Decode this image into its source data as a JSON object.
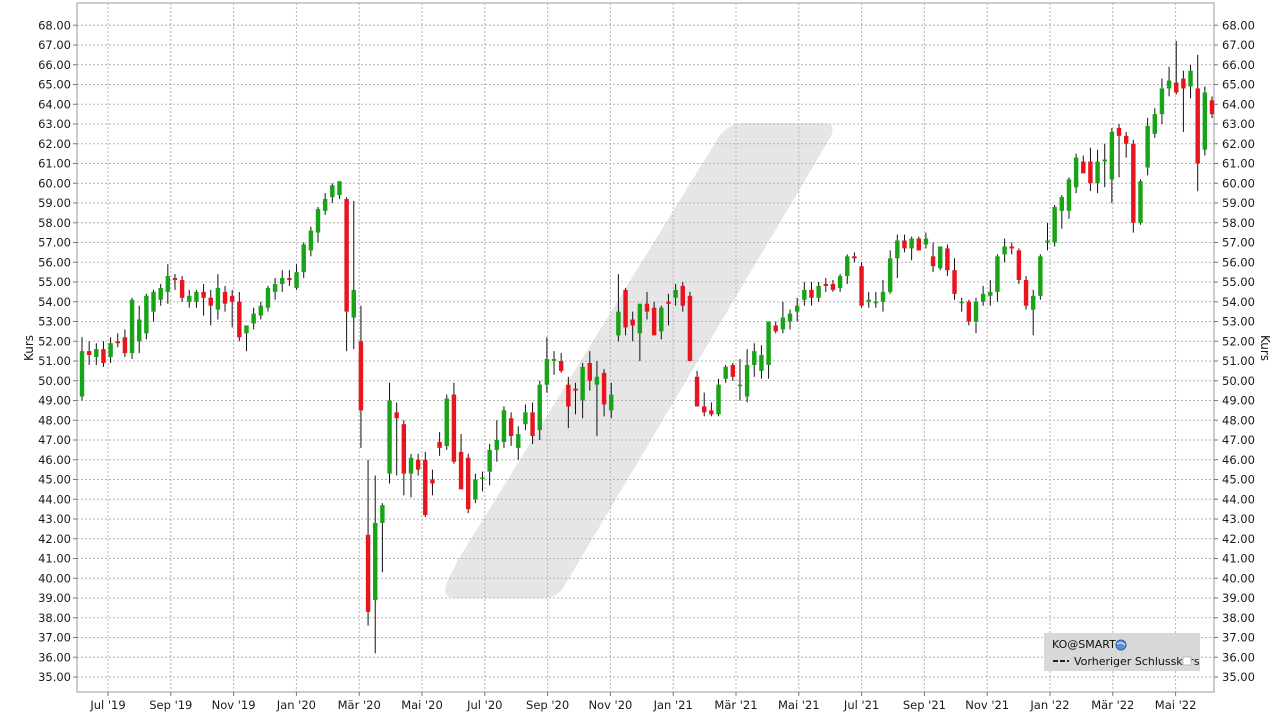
{
  "chart_data": {
    "type": "candlestick",
    "ylabel": "Kurs",
    "ylim": [
      34.4,
      68.6
    ],
    "y_ticks": [
      "35.00",
      "36.00",
      "37.00",
      "38.00",
      "39.00",
      "40.00",
      "41.00",
      "42.00",
      "43.00",
      "44.00",
      "45.00",
      "46.00",
      "47.00",
      "48.00",
      "49.00",
      "50.00",
      "51.00",
      "52.00",
      "53.00",
      "54.00",
      "55.00",
      "56.00",
      "57.00",
      "58.00",
      "59.00",
      "60.00",
      "61.00",
      "62.00",
      "63.00",
      "64.00",
      "65.00",
      "66.00",
      "67.00",
      "68.00"
    ],
    "x_ticks": [
      "Jul '19",
      "Sep '19",
      "Nov '19",
      "Jan '20",
      "Mär '20",
      "Mai '20",
      "Jul '20",
      "Sep '20",
      "Nov '20",
      "Jan '21",
      "Mär '21",
      "Mai '21",
      "Jul '21",
      "Sep '21",
      "Nov '21",
      "Jan '22",
      "Mär '22",
      "Mai '22"
    ],
    "grid": true,
    "legend": {
      "placement": "bottom-right",
      "title": "KO@SMART",
      "entries": [
        "Vorheriger Schlusskurs"
      ]
    },
    "up_color": "#19a319",
    "down_color": "#e8141e",
    "watermark_color": "#e6e6e6",
    "candles": [
      {
        "o": 49.2,
        "h": 52.2,
        "l": 49.0,
        "c": 51.5
      },
      {
        "o": 51.5,
        "h": 52.0,
        "l": 50.8,
        "c": 51.3
      },
      {
        "o": 51.2,
        "h": 51.9,
        "l": 50.8,
        "c": 51.6
      },
      {
        "o": 51.6,
        "h": 52.0,
        "l": 50.7,
        "c": 50.9
      },
      {
        "o": 51.2,
        "h": 52.2,
        "l": 50.9,
        "c": 51.9
      },
      {
        "o": 52.0,
        "h": 52.4,
        "l": 51.7,
        "c": 51.9
      },
      {
        "o": 52.2,
        "h": 52.6,
        "l": 51.2,
        "c": 51.4
      },
      {
        "o": 51.4,
        "h": 54.2,
        "l": 51.1,
        "c": 54.1
      },
      {
        "o": 52.0,
        "h": 53.8,
        "l": 51.4,
        "c": 53.1
      },
      {
        "o": 52.4,
        "h": 54.4,
        "l": 52.1,
        "c": 54.3
      },
      {
        "o": 53.5,
        "h": 54.6,
        "l": 53.0,
        "c": 54.5
      },
      {
        "o": 54.1,
        "h": 54.9,
        "l": 53.8,
        "c": 54.7
      },
      {
        "o": 54.5,
        "h": 55.9,
        "l": 53.9,
        "c": 55.3
      },
      {
        "o": 55.2,
        "h": 55.4,
        "l": 54.6,
        "c": 55.1
      },
      {
        "o": 55.1,
        "h": 55.3,
        "l": 54.0,
        "c": 54.2
      },
      {
        "o": 54.0,
        "h": 54.6,
        "l": 53.7,
        "c": 54.3
      },
      {
        "o": 54.0,
        "h": 54.6,
        "l": 53.7,
        "c": 54.5
      },
      {
        "o": 54.5,
        "h": 54.9,
        "l": 53.3,
        "c": 54.2
      },
      {
        "o": 54.2,
        "h": 54.6,
        "l": 52.8,
        "c": 53.8
      },
      {
        "o": 53.6,
        "h": 55.4,
        "l": 53.1,
        "c": 54.7
      },
      {
        "o": 54.5,
        "h": 54.8,
        "l": 53.5,
        "c": 53.9
      },
      {
        "o": 54.3,
        "h": 54.6,
        "l": 52.7,
        "c": 54.0
      },
      {
        "o": 54.0,
        "h": 54.5,
        "l": 52.0,
        "c": 52.2
      },
      {
        "o": 52.4,
        "h": 52.8,
        "l": 51.5,
        "c": 52.8
      },
      {
        "o": 52.9,
        "h": 53.7,
        "l": 52.6,
        "c": 53.4
      },
      {
        "o": 53.3,
        "h": 54.0,
        "l": 53.1,
        "c": 53.8
      },
      {
        "o": 53.7,
        "h": 54.8,
        "l": 53.5,
        "c": 54.7
      },
      {
        "o": 54.5,
        "h": 55.2,
        "l": 54.1,
        "c": 54.9
      },
      {
        "o": 54.9,
        "h": 55.6,
        "l": 54.5,
        "c": 55.2
      },
      {
        "o": 55.2,
        "h": 55.6,
        "l": 54.8,
        "c": 55.1
      },
      {
        "o": 54.7,
        "h": 55.9,
        "l": 54.6,
        "c": 55.5
      },
      {
        "o": 55.5,
        "h": 57.0,
        "l": 55.2,
        "c": 56.9
      },
      {
        "o": 56.6,
        "h": 57.8,
        "l": 56.3,
        "c": 57.6
      },
      {
        "o": 57.5,
        "h": 58.8,
        "l": 57.0,
        "c": 58.7
      },
      {
        "o": 58.6,
        "h": 59.5,
        "l": 58.4,
        "c": 59.2
      },
      {
        "o": 59.3,
        "h": 60.0,
        "l": 59.0,
        "c": 59.9
      },
      {
        "o": 59.4,
        "h": 60.1,
        "l": 59.2,
        "c": 60.1
      },
      {
        "o": 59.2,
        "h": 59.3,
        "l": 51.5,
        "c": 53.5
      },
      {
        "o": 53.2,
        "h": 59.1,
        "l": 51.6,
        "c": 54.6
      },
      {
        "o": 52.0,
        "h": 53.8,
        "l": 46.6,
        "c": 48.5
      },
      {
        "o": 42.2,
        "h": 46.0,
        "l": 37.6,
        "c": 38.3
      },
      {
        "o": 38.9,
        "h": 45.2,
        "l": 36.2,
        "c": 42.8
      },
      {
        "o": 42.8,
        "h": 43.8,
        "l": 40.3,
        "c": 43.7
      },
      {
        "o": 45.3,
        "h": 49.9,
        "l": 44.8,
        "c": 49.0
      },
      {
        "o": 48.4,
        "h": 48.9,
        "l": 45.2,
        "c": 48.1
      },
      {
        "o": 47.8,
        "h": 48.0,
        "l": 44.2,
        "c": 45.3
      },
      {
        "o": 45.3,
        "h": 46.3,
        "l": 44.1,
        "c": 46.1
      },
      {
        "o": 46.0,
        "h": 46.3,
        "l": 45.2,
        "c": 45.5
      },
      {
        "o": 46.0,
        "h": 46.4,
        "l": 43.1,
        "c": 43.2
      },
      {
        "o": 45.0,
        "h": 45.5,
        "l": 44.2,
        "c": 44.8
      },
      {
        "o": 46.9,
        "h": 47.4,
        "l": 46.2,
        "c": 46.6
      },
      {
        "o": 46.7,
        "h": 49.3,
        "l": 46.5,
        "c": 49.1
      },
      {
        "o": 49.3,
        "h": 49.9,
        "l": 45.8,
        "c": 45.9
      },
      {
        "o": 46.4,
        "h": 47.3,
        "l": 44.8,
        "c": 44.5
      },
      {
        "o": 46.1,
        "h": 46.3,
        "l": 43.3,
        "c": 43.5
      },
      {
        "o": 44.0,
        "h": 45.3,
        "l": 43.8,
        "c": 45.0
      },
      {
        "o": 45.1,
        "h": 45.4,
        "l": 44.4,
        "c": 45.1
      },
      {
        "o": 45.4,
        "h": 46.8,
        "l": 44.7,
        "c": 46.5
      },
      {
        "o": 46.5,
        "h": 48.0,
        "l": 45.9,
        "c": 47.0
      },
      {
        "o": 46.9,
        "h": 48.7,
        "l": 46.6,
        "c": 48.5
      },
      {
        "o": 48.1,
        "h": 48.4,
        "l": 46.7,
        "c": 47.2
      },
      {
        "o": 46.6,
        "h": 47.7,
        "l": 46.0,
        "c": 47.3
      },
      {
        "o": 47.8,
        "h": 48.8,
        "l": 47.5,
        "c": 48.4
      },
      {
        "o": 48.4,
        "h": 48.9,
        "l": 46.8,
        "c": 47.2
      },
      {
        "o": 47.5,
        "h": 50.0,
        "l": 47.0,
        "c": 49.8
      },
      {
        "o": 49.8,
        "h": 52.2,
        "l": 49.4,
        "c": 51.1
      },
      {
        "o": 51.0,
        "h": 51.5,
        "l": 50.3,
        "c": 51.1
      },
      {
        "o": 51.0,
        "h": 51.4,
        "l": 50.4,
        "c": 50.5
      },
      {
        "o": 49.8,
        "h": 50.2,
        "l": 47.6,
        "c": 48.7
      },
      {
        "o": 49.6,
        "h": 49.9,
        "l": 48.3,
        "c": 49.5
      },
      {
        "o": 49.0,
        "h": 50.9,
        "l": 48.1,
        "c": 50.7
      },
      {
        "o": 50.9,
        "h": 51.5,
        "l": 49.5,
        "c": 50.0
      },
      {
        "o": 49.8,
        "h": 51.0,
        "l": 47.2,
        "c": 50.2
      },
      {
        "o": 50.4,
        "h": 50.6,
        "l": 48.2,
        "c": 48.8
      },
      {
        "o": 48.5,
        "h": 49.9,
        "l": 48.1,
        "c": 49.3
      },
      {
        "o": 52.3,
        "h": 55.4,
        "l": 52.0,
        "c": 53.5
      },
      {
        "o": 54.6,
        "h": 54.7,
        "l": 52.3,
        "c": 52.7
      },
      {
        "o": 53.1,
        "h": 53.5,
        "l": 52.0,
        "c": 52.8
      },
      {
        "o": 52.4,
        "h": 53.9,
        "l": 51.0,
        "c": 53.9
      },
      {
        "o": 53.9,
        "h": 54.5,
        "l": 53.1,
        "c": 53.5
      },
      {
        "o": 53.7,
        "h": 54.0,
        "l": 52.3,
        "c": 52.3
      },
      {
        "o": 52.5,
        "h": 53.8,
        "l": 52.1,
        "c": 53.7
      },
      {
        "o": 54.0,
        "h": 54.4,
        "l": 52.8,
        "c": 53.9
      },
      {
        "o": 54.2,
        "h": 54.9,
        "l": 53.8,
        "c": 54.6
      },
      {
        "o": 54.8,
        "h": 55.0,
        "l": 53.5,
        "c": 53.8
      },
      {
        "o": 54.3,
        "h": 54.5,
        "l": 51.2,
        "c": 51.0
      },
      {
        "o": 50.2,
        "h": 50.5,
        "l": 48.7,
        "c": 48.7
      },
      {
        "o": 48.7,
        "h": 49.4,
        "l": 48.2,
        "c": 48.4
      },
      {
        "o": 48.5,
        "h": 48.9,
        "l": 48.2,
        "c": 48.3
      },
      {
        "o": 48.3,
        "h": 50.1,
        "l": 48.2,
        "c": 49.8
      },
      {
        "o": 50.1,
        "h": 50.8,
        "l": 49.9,
        "c": 50.7
      },
      {
        "o": 50.8,
        "h": 50.9,
        "l": 50.0,
        "c": 50.2
      },
      {
        "o": 49.8,
        "h": 51.1,
        "l": 49.0,
        "c": 49.8
      },
      {
        "o": 49.2,
        "h": 51.6,
        "l": 48.9,
        "c": 50.8
      },
      {
        "o": 50.8,
        "h": 51.9,
        "l": 50.2,
        "c": 51.5
      },
      {
        "o": 50.5,
        "h": 51.8,
        "l": 50.1,
        "c": 51.3
      },
      {
        "o": 50.8,
        "h": 53.0,
        "l": 50.1,
        "c": 53.0
      },
      {
        "o": 52.8,
        "h": 53.0,
        "l": 52.4,
        "c": 52.5
      },
      {
        "o": 52.6,
        "h": 54.0,
        "l": 52.4,
        "c": 53.2
      },
      {
        "o": 53.0,
        "h": 53.6,
        "l": 52.6,
        "c": 53.4
      },
      {
        "o": 53.5,
        "h": 54.2,
        "l": 53.0,
        "c": 53.8
      },
      {
        "o": 54.1,
        "h": 55.0,
        "l": 53.8,
        "c": 54.6
      },
      {
        "o": 54.6,
        "h": 55.0,
        "l": 53.8,
        "c": 54.2
      },
      {
        "o": 54.2,
        "h": 55.0,
        "l": 54.0,
        "c": 54.8
      },
      {
        "o": 54.9,
        "h": 55.2,
        "l": 54.5,
        "c": 54.8
      },
      {
        "o": 54.9,
        "h": 55.1,
        "l": 54.5,
        "c": 54.6
      },
      {
        "o": 54.7,
        "h": 55.4,
        "l": 54.5,
        "c": 55.3
      },
      {
        "o": 55.3,
        "h": 56.4,
        "l": 54.9,
        "c": 56.3
      },
      {
        "o": 56.3,
        "h": 56.5,
        "l": 56.0,
        "c": 56.2
      },
      {
        "o": 55.8,
        "h": 56.0,
        "l": 53.7,
        "c": 53.8
      },
      {
        "o": 54.0,
        "h": 54.5,
        "l": 53.7,
        "c": 54.1
      },
      {
        "o": 54.0,
        "h": 54.5,
        "l": 53.7,
        "c": 54.0
      },
      {
        "o": 54.0,
        "h": 55.1,
        "l": 53.5,
        "c": 54.5
      },
      {
        "o": 54.5,
        "h": 56.6,
        "l": 54.4,
        "c": 56.2
      },
      {
        "o": 56.2,
        "h": 57.4,
        "l": 55.2,
        "c": 57.1
      },
      {
        "o": 57.1,
        "h": 57.4,
        "l": 56.5,
        "c": 56.7
      },
      {
        "o": 56.7,
        "h": 57.3,
        "l": 56.1,
        "c": 57.2
      },
      {
        "o": 57.2,
        "h": 57.3,
        "l": 56.6,
        "c": 56.6
      },
      {
        "o": 56.9,
        "h": 57.5,
        "l": 56.7,
        "c": 57.2
      },
      {
        "o": 56.3,
        "h": 57.0,
        "l": 55.5,
        "c": 55.8
      },
      {
        "o": 55.7,
        "h": 56.8,
        "l": 55.6,
        "c": 56.8
      },
      {
        "o": 56.7,
        "h": 56.9,
        "l": 55.3,
        "c": 55.6
      },
      {
        "o": 55.6,
        "h": 56.2,
        "l": 54.1,
        "c": 54.4
      },
      {
        "o": 54.0,
        "h": 54.2,
        "l": 53.5,
        "c": 54.0
      },
      {
        "o": 54.0,
        "h": 54.1,
        "l": 52.8,
        "c": 53.0
      },
      {
        "o": 53.0,
        "h": 54.2,
        "l": 52.4,
        "c": 54.0
      },
      {
        "o": 54.0,
        "h": 54.8,
        "l": 53.8,
        "c": 54.4
      },
      {
        "o": 54.3,
        "h": 55.1,
        "l": 53.8,
        "c": 54.5
      },
      {
        "o": 54.5,
        "h": 56.4,
        "l": 54.0,
        "c": 56.3
      },
      {
        "o": 56.4,
        "h": 57.2,
        "l": 56.0,
        "c": 56.8
      },
      {
        "o": 56.8,
        "h": 57.0,
        "l": 56.4,
        "c": 56.7
      },
      {
        "o": 56.6,
        "h": 56.7,
        "l": 54.9,
        "c": 55.1
      },
      {
        "o": 55.1,
        "h": 55.3,
        "l": 53.6,
        "c": 53.8
      },
      {
        "o": 53.6,
        "h": 54.6,
        "l": 52.3,
        "c": 54.3
      },
      {
        "o": 54.3,
        "h": 56.4,
        "l": 54.1,
        "c": 56.3
      },
      {
        "o": 57.0,
        "h": 58.0,
        "l": 56.6,
        "c": 57.1
      },
      {
        "o": 57.0,
        "h": 58.9,
        "l": 56.8,
        "c": 58.8
      },
      {
        "o": 58.6,
        "h": 59.4,
        "l": 57.7,
        "c": 59.3
      },
      {
        "o": 58.6,
        "h": 60.3,
        "l": 58.2,
        "c": 60.2
      },
      {
        "o": 59.8,
        "h": 61.5,
        "l": 59.5,
        "c": 61.3
      },
      {
        "o": 61.1,
        "h": 61.4,
        "l": 60.5,
        "c": 60.5
      },
      {
        "o": 61.1,
        "h": 61.8,
        "l": 59.6,
        "c": 60.0
      },
      {
        "o": 60.0,
        "h": 61.7,
        "l": 59.5,
        "c": 61.1
      },
      {
        "o": 61.1,
        "h": 62.0,
        "l": 59.8,
        "c": 61.2
      },
      {
        "o": 60.2,
        "h": 62.8,
        "l": 59.0,
        "c": 62.6
      },
      {
        "o": 62.8,
        "h": 63.0,
        "l": 60.3,
        "c": 62.4
      },
      {
        "o": 62.4,
        "h": 62.6,
        "l": 61.3,
        "c": 62.0
      },
      {
        "o": 62.0,
        "h": 62.2,
        "l": 57.5,
        "c": 58.0
      },
      {
        "o": 58.0,
        "h": 60.2,
        "l": 57.9,
        "c": 60.1
      },
      {
        "o": 60.8,
        "h": 63.3,
        "l": 60.4,
        "c": 62.9
      },
      {
        "o": 62.5,
        "h": 63.8,
        "l": 62.3,
        "c": 63.5
      },
      {
        "o": 63.5,
        "h": 65.3,
        "l": 63.0,
        "c": 64.8
      },
      {
        "o": 64.8,
        "h": 65.9,
        "l": 64.4,
        "c": 65.2
      },
      {
        "o": 65.1,
        "h": 67.2,
        "l": 64.5,
        "c": 64.6
      },
      {
        "o": 65.3,
        "h": 65.7,
        "l": 62.6,
        "c": 64.8
      },
      {
        "o": 64.9,
        "h": 66.0,
        "l": 64.3,
        "c": 65.7
      },
      {
        "o": 64.8,
        "h": 66.5,
        "l": 59.6,
        "c": 61.0
      },
      {
        "o": 61.7,
        "h": 64.9,
        "l": 61.4,
        "c": 64.6
      },
      {
        "o": 64.2,
        "h": 64.4,
        "l": 63.3,
        "c": 63.5
      }
    ]
  }
}
